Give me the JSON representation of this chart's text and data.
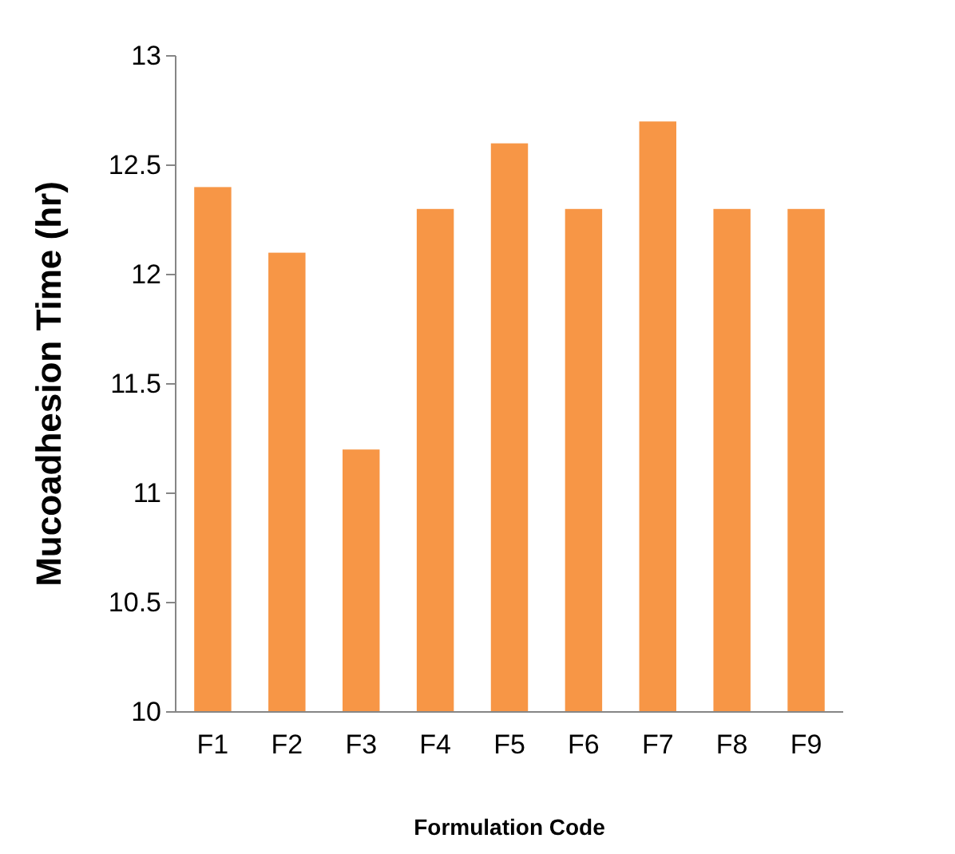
{
  "chart_data": {
    "type": "bar",
    "xlabel": "Formulation Code",
    "ylabel": "Mucoadhesion Time (hr)",
    "categories": [
      "F1",
      "F2",
      "F3",
      "F4",
      "F5",
      "F6",
      "F7",
      "F8",
      "F9"
    ],
    "values": [
      12.4,
      12.1,
      11.2,
      12.3,
      12.6,
      12.3,
      12.7,
      12.3,
      12.3
    ],
    "color": "#f79646",
    "ylim": [
      10,
      13
    ],
    "yticks": [
      10,
      10.5,
      11,
      11.5,
      12,
      12.5,
      13
    ],
    "grid": false
  }
}
